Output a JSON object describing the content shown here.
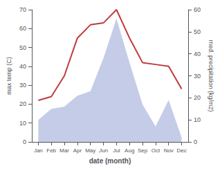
{
  "chart_data": {
    "type": "line",
    "categories": [
      "Jan",
      "Feb",
      "Mar",
      "Apr",
      "May",
      "Jun",
      "Jul",
      "Aug",
      "Sep",
      "Oct",
      "Nov",
      "Dec"
    ],
    "xlabel": "date (month)",
    "ylabel": "max temp (C)",
    "y2label": "med. precipitation (kg/m2)",
    "ylim": [
      0,
      70
    ],
    "yticks": [
      0,
      10,
      20,
      30,
      40,
      50,
      60,
      70
    ],
    "y2lim": [
      0,
      60
    ],
    "y2ticks": [
      0,
      10,
      20,
      30,
      40,
      50,
      60
    ],
    "grid": false,
    "series": [
      {
        "type": "area",
        "axis": "y2",
        "color": "#c5cce8",
        "values": [
          10,
          15,
          16,
          21,
          23,
          38,
          56,
          36,
          17,
          7,
          19,
          2
        ]
      },
      {
        "type": "line",
        "color": "#c0393b",
        "values": [
          22,
          24,
          35,
          55,
          62,
          63,
          70,
          55,
          42,
          41,
          40,
          28
        ]
      }
    ]
  }
}
